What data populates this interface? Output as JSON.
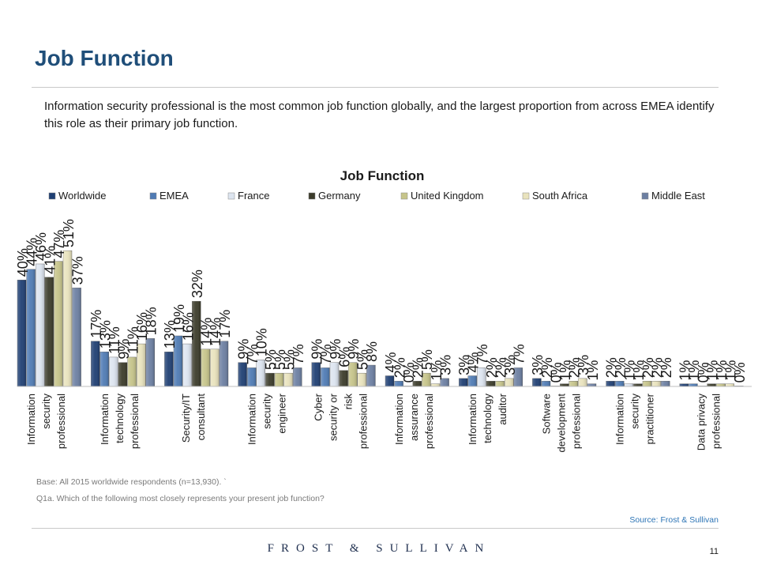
{
  "page": {
    "title": "Job Function",
    "intro": "Information security professional is the most common job function globally, and the largest proportion from across EMEA identify this role as their primary job function.",
    "base_note": "Base: All 2015 worldwide respondents (n=13,930).  `",
    "question_note": "Q1a. Which of the following most closely represents your present job function?",
    "source": "Source: Frost & Sullivan",
    "brand": "FROST & SULLIVAN",
    "page_number": "11"
  },
  "colors": {
    "title": "#1f4e79",
    "source": "#2e75b6",
    "series": [
      "#1f3f73",
      "#4f7bb4",
      "#dde5f0",
      "#3b3b2a",
      "#c6c48a",
      "#e9e3bd",
      "#6c7fa2"
    ]
  },
  "chart_data": {
    "type": "bar",
    "title": "Job Function",
    "legend_position": "top",
    "grid": false,
    "ylim": [
      0,
      55
    ],
    "categories": [
      [
        "Information",
        "security",
        "professional"
      ],
      [
        "Information",
        "technology",
        "professional"
      ],
      [
        "Security/IT",
        "consultant"
      ],
      [
        "Information",
        "security",
        "engineer"
      ],
      [
        "Cyber",
        "security or",
        "risk",
        "professional"
      ],
      [
        "Information",
        "assurance",
        "professional"
      ],
      [
        "Information",
        "technology",
        "auditor"
      ],
      [
        "Software",
        "development",
        "professional"
      ],
      [
        "Information",
        "security",
        "practitioner"
      ],
      [
        "Data privacy",
        "professional"
      ]
    ],
    "series": [
      {
        "name": "Worldwide",
        "values": [
          40,
          17,
          13,
          9,
          9,
          4,
          3,
          3,
          2,
          1
        ]
      },
      {
        "name": "EMEA",
        "values": [
          44,
          13,
          19,
          7,
          7,
          2,
          4,
          2,
          2,
          1
        ]
      },
      {
        "name": "France",
        "values": [
          46,
          11,
          16,
          10,
          9,
          0,
          7,
          0,
          1,
          0
        ]
      },
      {
        "name": "Germany",
        "values": [
          41,
          9,
          32,
          5,
          6,
          2,
          2,
          1,
          1,
          1
        ]
      },
      {
        "name": "United Kingdom",
        "values": [
          47,
          11,
          14,
          5,
          9,
          5,
          2,
          2,
          2,
          1
        ]
      },
      {
        "name": "South Africa",
        "values": [
          51,
          16,
          14,
          5,
          5,
          1,
          3,
          3,
          2,
          1
        ]
      },
      {
        "name": "Middle East",
        "values": [
          37,
          18,
          17,
          7,
          8,
          3,
          7,
          1,
          2,
          0
        ]
      }
    ],
    "value_labels": [
      [
        "40%",
        "17%",
        "13%",
        "9%",
        "9%",
        "4%",
        "3%",
        "3%",
        "2%",
        "1%"
      ],
      [
        "44%",
        "13%",
        "19%",
        "7%",
        "7%",
        "2%",
        "4%",
        "2%",
        "2%",
        "1%"
      ],
      [
        "46%",
        "11%",
        "16%",
        "10%",
        "9%",
        "0%",
        "7%",
        "0%",
        "1%",
        "0%"
      ],
      [
        "41%",
        "9%",
        "32%",
        "5%",
        "6%",
        "2%",
        "2%",
        "1%",
        "1%",
        "1%"
      ],
      [
        "47%",
        "11%",
        "14%",
        "5%",
        "9%",
        "5%",
        "2%",
        "2%",
        "2%",
        "1%"
      ],
      [
        "51%",
        "16%",
        "14%",
        "5%",
        "5%",
        "1%",
        "3%",
        "3%",
        "2%",
        "1%"
      ],
      [
        "37%",
        "18%",
        "17%",
        "7%",
        "8%",
        "3%",
        "7%",
        "1%",
        "2%",
        "0%"
      ]
    ]
  }
}
